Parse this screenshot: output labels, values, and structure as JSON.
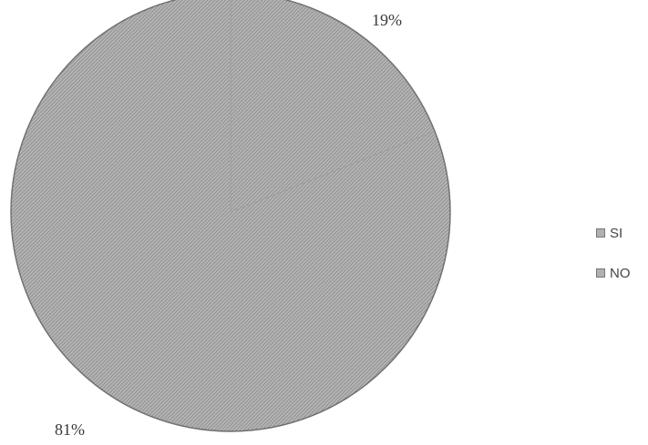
{
  "chart_data": {
    "type": "pie",
    "title": "",
    "slices": [
      {
        "label": "SI",
        "value": 19,
        "display": "19%",
        "color": "#a9a9a9"
      },
      {
        "label": "NO",
        "value": 81,
        "display": "81%",
        "color": "#a9a9a9"
      }
    ],
    "legend": {
      "placement": "right",
      "entries": [
        "SI",
        "NO"
      ]
    }
  }
}
